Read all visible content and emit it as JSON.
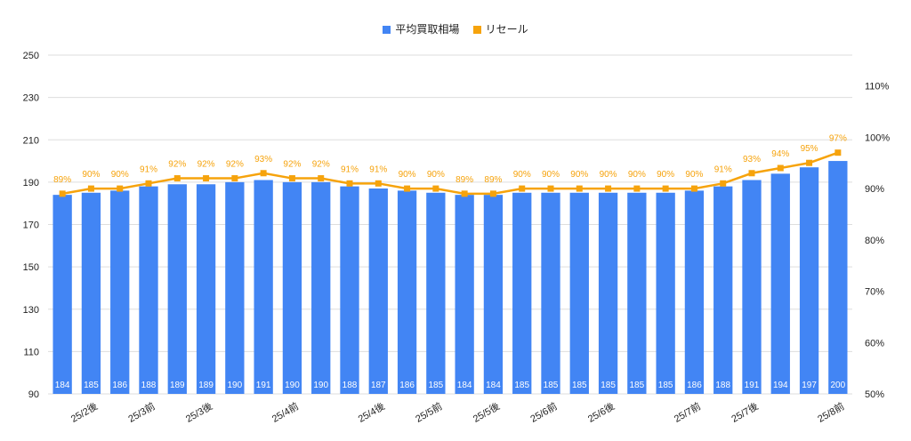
{
  "chart_data": {
    "type": "bar+line",
    "legend": [
      {
        "label": "平均買取相場",
        "color": "#4285f4",
        "marker": "square"
      },
      {
        "label": "リセール",
        "color": "#f6a30c",
        "marker": "line-square"
      }
    ],
    "categories": [
      "",
      "25/2後",
      "",
      "25/3前",
      "",
      "25/3後",
      "",
      "",
      "25/4前",
      "",
      "",
      "25/4後",
      "",
      "25/5前",
      "",
      "25/5後",
      "",
      "25/6前",
      "",
      "25/6後",
      "",
      "",
      "25/7前",
      "",
      "25/7後",
      "",
      "",
      "25/8前"
    ],
    "series": [
      {
        "name": "平均買取相場",
        "axis": "left",
        "type": "bar",
        "color": "#4285f4",
        "values": [
          184,
          185,
          186,
          188,
          189,
          189,
          190,
          191,
          190,
          190,
          188,
          187,
          186,
          185,
          184,
          184,
          185,
          185,
          185,
          185,
          185,
          185,
          186,
          188,
          191,
          194,
          197,
          200
        ]
      },
      {
        "name": "リセール",
        "axis": "right",
        "type": "line",
        "color": "#f6a30c",
        "values": [
          89,
          90,
          90,
          91,
          92,
          92,
          92,
          93,
          92,
          92,
          91,
          91,
          90,
          90,
          89,
          89,
          90,
          90,
          90,
          90,
          90,
          90,
          90,
          91,
          93,
          94,
          95,
          97
        ],
        "labels": [
          "89%",
          "90%",
          "90%",
          "91%",
          "92%",
          "92%",
          "92%",
          "93%",
          "92%",
          "92%",
          "91%",
          "91%",
          "90%",
          "90%",
          "89%",
          "89%",
          "90%",
          "90%",
          "90%",
          "90%",
          "90%",
          "90%",
          "90%",
          "91%",
          "93%",
          "94%",
          "95%",
          "97%"
        ]
      }
    ],
    "y_left": {
      "ylim": [
        90,
        250
      ],
      "ticks": [
        "90",
        "110",
        "130",
        "150",
        "170",
        "190",
        "210",
        "230",
        "250"
      ]
    },
    "y_right": {
      "ylim": [
        50,
        116
      ],
      "ticks": [
        "50%",
        "60%",
        "70%",
        "80%",
        "90%",
        "100%",
        "110%"
      ]
    },
    "grid": true,
    "legend_position": "top-center"
  }
}
